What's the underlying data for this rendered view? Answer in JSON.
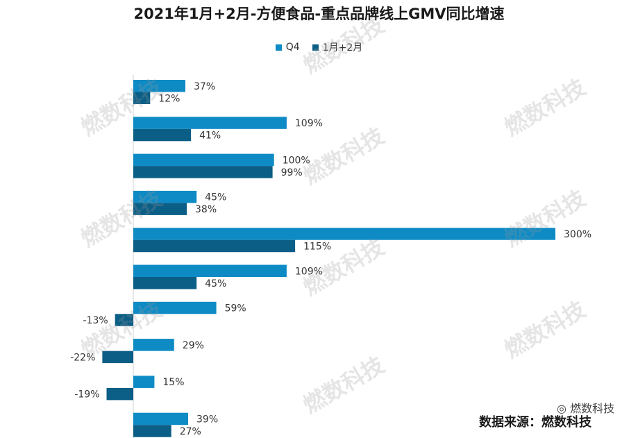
{
  "title": "2021年1月+2月-方便食品-重点品牌线上GMV同比增速",
  "source_text": "数据来源：燃数科技",
  "brand_text": "燃数科技",
  "watermark_text": "燃数科技",
  "chart_data": {
    "type": "bar",
    "orientation": "horizontal",
    "title": "2021年1月+2月-方便食品-重点品牌线上GMV同比增速",
    "categories": [
      "",
      "",
      "",
      "",
      "",
      "",
      "",
      "",
      "",
      ""
    ],
    "series": [
      {
        "name": "Q4",
        "color": "#0e8bc5",
        "values": [
          37,
          109,
          100,
          45,
          300,
          109,
          59,
          29,
          15,
          39
        ]
      },
      {
        "name": "1月+2月",
        "color": "#0b5e86",
        "values": [
          12,
          41,
          99,
          38,
          115,
          45,
          -13,
          -22,
          -19,
          27
        ]
      }
    ],
    "value_suffix": "%",
    "xlim": [
      -50,
      300
    ],
    "legend": "top-center",
    "grid": false
  }
}
